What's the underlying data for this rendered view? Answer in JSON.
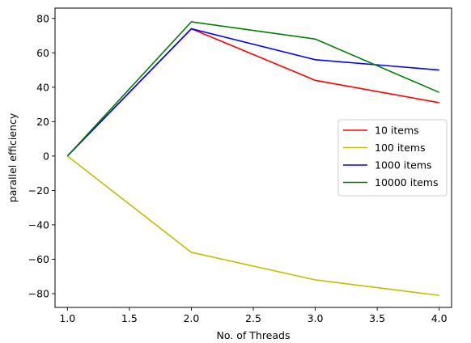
{
  "chart_data": {
    "type": "line",
    "title": "",
    "xlabel": "No. of Threads",
    "ylabel": "parallel efficiency",
    "x": [
      1.0,
      2.0,
      3.0,
      4.0
    ],
    "xlim": [
      0.9,
      4.1
    ],
    "ylim": [
      -88,
      86
    ],
    "xticks": [
      1.0,
      1.5,
      2.0,
      2.5,
      3.0,
      3.5,
      4.0
    ],
    "xtick_labels": [
      "1.0",
      "1.5",
      "2.0",
      "2.5",
      "3.0",
      "3.5",
      "4.0"
    ],
    "yticks": [
      -80,
      -60,
      -40,
      -20,
      0,
      20,
      40,
      60,
      80
    ],
    "ytick_labels": [
      "−80",
      "−60",
      "−40",
      "−20",
      "0",
      "20",
      "40",
      "60",
      "80"
    ],
    "grid": false,
    "legend_position": "center-right",
    "series": [
      {
        "name": "10 items",
        "color": "#ff0000",
        "values": [
          0,
          74,
          44,
          31
        ]
      },
      {
        "name": "100 items",
        "color": "#bfbf00",
        "values": [
          0,
          -56,
          -72,
          -81
        ]
      },
      {
        "name": "1000 items",
        "color": "#0000ff",
        "values": [
          0,
          74,
          56,
          50
        ]
      },
      {
        "name": "10000 items",
        "color": "#008000",
        "values": [
          0,
          78,
          68,
          37
        ]
      }
    ]
  }
}
